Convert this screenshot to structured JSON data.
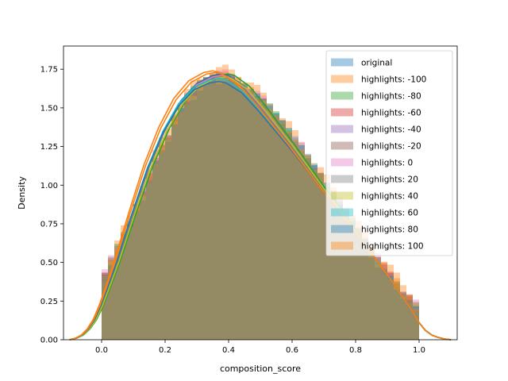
{
  "chart_data": {
    "type": "histogram_kde",
    "xlabel": "composition_score",
    "ylabel": "Density",
    "xlim": [
      -0.12,
      1.12
    ],
    "ylim": [
      0.0,
      1.9
    ],
    "xticks": [
      0.0,
      0.2,
      0.4,
      0.6,
      0.8,
      1.0
    ],
    "xtick_labels": [
      "0.0",
      "0.2",
      "0.4",
      "0.6",
      "0.8",
      "1.0"
    ],
    "yticks": [
      0.0,
      0.25,
      0.5,
      0.75,
      1.0,
      1.25,
      1.5,
      1.75
    ],
    "ytick_labels": [
      "0.00",
      "0.25",
      "0.50",
      "0.75",
      "1.00",
      "1.25",
      "1.50",
      "1.75"
    ],
    "bin_width": 0.02,
    "bin_start": 0.0,
    "bin_count": 50,
    "legend_position": "top-right",
    "base_density": [
      0.41,
      0.5,
      0.58,
      0.66,
      0.74,
      0.85,
      0.95,
      1.05,
      1.15,
      1.24,
      1.33,
      1.42,
      1.49,
      1.55,
      1.6,
      1.64,
      1.67,
      1.69,
      1.7,
      1.7,
      1.69,
      1.67,
      1.64,
      1.61,
      1.57,
      1.53,
      1.49,
      1.44,
      1.39,
      1.34,
      1.28,
      1.23,
      1.17,
      1.11,
      1.05,
      0.99,
      0.93,
      0.87,
      0.81,
      0.75,
      0.69,
      0.63,
      0.57,
      0.51,
      0.46,
      0.41,
      0.36,
      0.31,
      0.26,
      0.21
    ],
    "kde_x": [
      -0.1,
      -0.08,
      -0.06,
      -0.04,
      -0.02,
      0.0,
      0.02,
      0.05,
      0.1,
      0.15,
      0.2,
      0.25,
      0.3,
      0.35,
      0.38,
      0.4,
      0.45,
      0.5,
      0.55,
      0.6,
      0.65,
      0.7,
      0.75,
      0.8,
      0.85,
      0.9,
      0.95,
      0.98,
      1.0,
      1.02,
      1.04,
      1.06,
      1.08,
      1.1
    ],
    "kde_y": [
      0.0,
      0.01,
      0.03,
      0.07,
      0.13,
      0.22,
      0.33,
      0.5,
      0.82,
      1.12,
      1.36,
      1.54,
      1.65,
      1.7,
      1.71,
      1.7,
      1.63,
      1.51,
      1.38,
      1.25,
      1.11,
      0.97,
      0.84,
      0.7,
      0.56,
      0.42,
      0.27,
      0.18,
      0.11,
      0.06,
      0.03,
      0.015,
      0.005,
      0.0
    ],
    "series": [
      {
        "name": "original",
        "color": "#1f77b4",
        "hist_delta": 0.0,
        "kde_peak": 1.72,
        "kde_peak_x": 0.37
      },
      {
        "name": "highlights: -100",
        "color": "#ff7f0e",
        "hist_delta": 0.05,
        "kde_peak": 1.74,
        "kde_peak_x": 0.34
      },
      {
        "name": "highlights: -80",
        "color": "#2ca02c",
        "hist_delta": 0.01,
        "kde_peak": 1.72,
        "kde_peak_x": 0.39
      },
      {
        "name": "highlights: -60",
        "color": "#d62728",
        "hist_delta": 0.0,
        "kde_peak": 1.71,
        "kde_peak_x": 0.37
      },
      {
        "name": "highlights: -40",
        "color": "#9467bd",
        "hist_delta": -0.01,
        "kde_peak": 1.71,
        "kde_peak_x": 0.37
      },
      {
        "name": "highlights: -20",
        "color": "#8c564b",
        "hist_delta": 0.0,
        "kde_peak": 1.71,
        "kde_peak_x": 0.37
      },
      {
        "name": "highlights: 0",
        "color": "#e377c2",
        "hist_delta": 0.02,
        "kde_peak": 1.71,
        "kde_peak_x": 0.37
      },
      {
        "name": "highlights: 20",
        "color": "#7f7f7f",
        "hist_delta": 0.0,
        "kde_peak": 1.7,
        "kde_peak_x": 0.37
      },
      {
        "name": "highlights: 40",
        "color": "#bcbd22",
        "hist_delta": -0.01,
        "kde_peak": 1.7,
        "kde_peak_x": 0.38
      },
      {
        "name": "highlights: 60",
        "color": "#17becf",
        "hist_delta": 0.0,
        "kde_peak": 1.69,
        "kde_peak_x": 0.36
      },
      {
        "name": "highlights: 80",
        "color": "#1f77b4",
        "hist_delta": -0.02,
        "kde_peak": 1.67,
        "kde_peak_x": 0.36
      },
      {
        "name": "highlights: 100",
        "color": "#ff7f0e",
        "hist_delta": 0.01,
        "kde_peak": 1.73,
        "kde_peak_x": 0.35
      }
    ]
  }
}
